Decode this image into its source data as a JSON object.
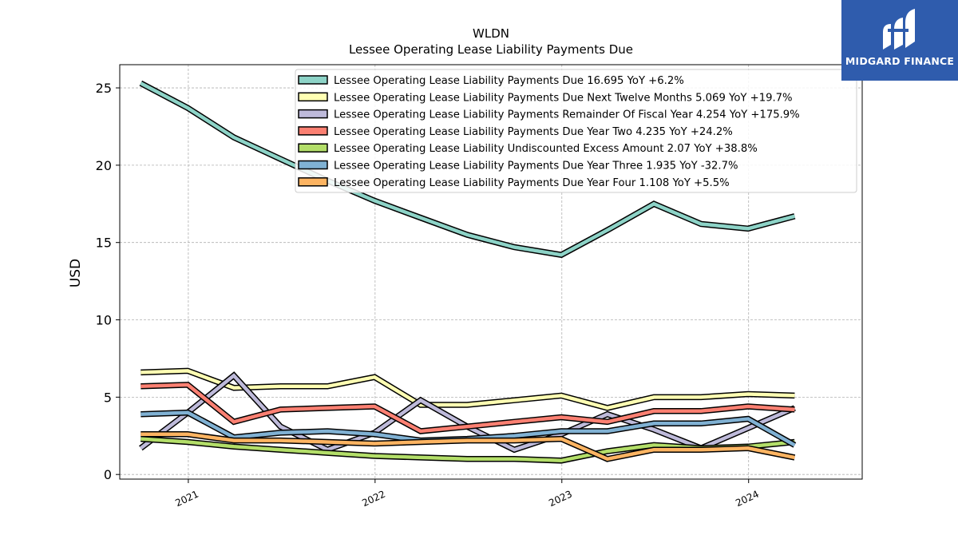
{
  "logo": {
    "text": "MIDGARD FINANCE",
    "color": "#2f5cad"
  },
  "chart_data": {
    "type": "line",
    "title": "WLDN",
    "subtitle": "Lessee Operating Lease Liability Payments Due",
    "xlabel": "",
    "ylabel": "USD",
    "xlim": [
      "2020-08-20",
      "2024-08-10"
    ],
    "ylim": [
      -0.3,
      26.5
    ],
    "xticks": [
      {
        "date": "2021-01-01",
        "label": "2021"
      },
      {
        "date": "2022-01-01",
        "label": "2022"
      },
      {
        "date": "2023-01-01",
        "label": "2023"
      },
      {
        "date": "2024-01-01",
        "label": "2024"
      }
    ],
    "yticks": [
      0,
      5,
      10,
      15,
      20,
      25
    ],
    "grid": true,
    "legend_position": "top-right",
    "x": [
      "2020-09-30",
      "2020-12-31",
      "2021-03-31",
      "2021-06-30",
      "2021-09-30",
      "2021-12-31",
      "2022-03-31",
      "2022-06-30",
      "2022-09-30",
      "2022-12-31",
      "2023-03-31",
      "2023-06-30",
      "2023-09-30",
      "2023-12-31",
      "2024-03-31"
    ],
    "series": [
      {
        "name": "Lessee Operating Lease Liability Payments Due",
        "legend": "Lessee Operating Lease Liability Payments Due  16.695 YoY +6.2%",
        "color": "#8dd3c7",
        "values": [
          25.3,
          23.7,
          21.8,
          20.4,
          19.0,
          17.7,
          16.6,
          15.5,
          14.7,
          14.2,
          15.8,
          17.5,
          16.2,
          15.9,
          16.7
        ]
      },
      {
        "name": "Lessee Operating Lease Liability Payments Due Next Twelve Months",
        "legend": "Lessee Operating Lease Liability Payments Due Next Twelve Months  5.069 YoY +19.7%",
        "color": "#ffffb3",
        "values": [
          6.6,
          6.7,
          5.6,
          5.7,
          5.7,
          6.3,
          4.5,
          4.5,
          4.8,
          5.1,
          4.3,
          5.0,
          5.0,
          5.2,
          5.1
        ]
      },
      {
        "name": "Lessee Operating Lease Liability Payments Remainder Of Fiscal Year",
        "legend": "Lessee Operating Lease Liability Payments Remainder Of Fiscal Year  4.254 YoY +175.9%",
        "color": "#bebada",
        "values": [
          1.7,
          4.0,
          6.4,
          3.1,
          1.6,
          2.7,
          4.8,
          3.1,
          1.6,
          2.6,
          3.9,
          2.9,
          1.7,
          3.0,
          4.3
        ]
      },
      {
        "name": "Lessee Operating Lease Liability Payments Due Year Two",
        "legend": "Lessee Operating Lease Liability Payments Due Year Two  4.235 YoY +24.2%",
        "color": "#fb8072",
        "values": [
          5.7,
          5.8,
          3.4,
          4.2,
          4.3,
          4.4,
          2.8,
          3.1,
          3.4,
          3.7,
          3.4,
          4.1,
          4.1,
          4.4,
          4.2
        ]
      },
      {
        "name": "Lessee Operating Lease Liability Undiscounted Excess Amount",
        "legend": "Lessee Operating Lease Liability Undiscounted Excess Amount  2.07 YoY +38.8%",
        "color": "#b3de69",
        "values": [
          2.3,
          2.1,
          1.8,
          1.6,
          1.4,
          1.2,
          1.1,
          1.0,
          1.0,
          0.9,
          1.5,
          1.9,
          1.7,
          1.8,
          2.1
        ]
      },
      {
        "name": "Lessee Operating Lease Liability Payments Due Year Three",
        "legend": "Lessee Operating Lease Liability Payments Due Year Three  1.935 YoY -32.7%",
        "color": "#80b1d3",
        "values": [
          3.9,
          4.0,
          2.4,
          2.7,
          2.8,
          2.6,
          2.2,
          2.3,
          2.5,
          2.8,
          2.8,
          3.3,
          3.3,
          3.6,
          1.9
        ]
      },
      {
        "name": "Lessee Operating Lease Liability Payments Due Year Four",
        "legend": "Lessee Operating Lease Liability Payments Due Year Four  1.108 YoY +5.5%",
        "color": "#fdb462",
        "values": [
          2.6,
          2.6,
          2.2,
          2.2,
          2.1,
          2.0,
          2.1,
          2.2,
          2.2,
          2.3,
          1.0,
          1.6,
          1.6,
          1.7,
          1.1
        ]
      }
    ]
  }
}
